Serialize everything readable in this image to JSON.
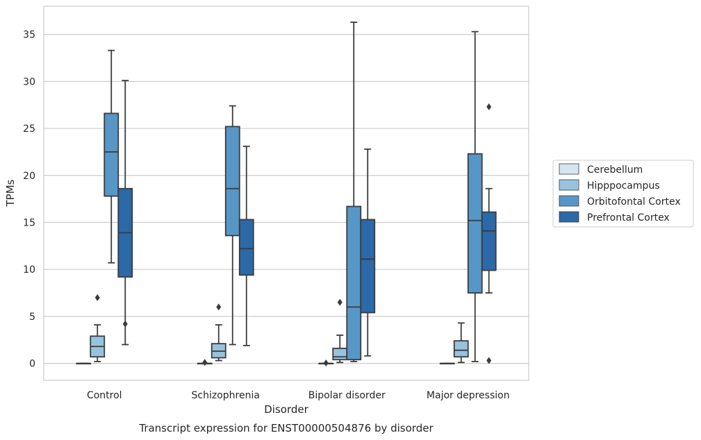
{
  "chart_data": {
    "type": "box",
    "xlabel": "Disorder",
    "ylabel": "TPMs",
    "caption": "Transcript expression for ENST00000504876 by disorder",
    "ylim": [
      -1.8,
      38.0
    ],
    "yticks": [
      0,
      5,
      10,
      15,
      20,
      25,
      30,
      35
    ],
    "grid": "horizontal",
    "legend_position": "right",
    "categories": [
      "Control",
      "Schizophrenia",
      "Bipolar disorder",
      "Major depression"
    ],
    "series": [
      {
        "name": "Cerebellum",
        "color": "#d6e5f2",
        "boxes": [
          {
            "whisker_low": 0,
            "q1": 0,
            "median": 0,
            "q3": 0,
            "whisker_high": 0,
            "outliers": []
          },
          {
            "whisker_low": 0,
            "q1": 0,
            "median": 0,
            "q3": 0,
            "whisker_high": 0,
            "outliers": [
              0.1
            ]
          },
          {
            "whisker_low": 0,
            "q1": 0,
            "median": 0,
            "q3": 0,
            "whisker_high": 0,
            "outliers": [
              0.05
            ]
          },
          {
            "whisker_low": 0,
            "q1": 0,
            "median": 0,
            "q3": 0,
            "whisker_high": 0,
            "outliers": []
          }
        ]
      },
      {
        "name": "Hipppocampus",
        "color": "#97c3df",
        "boxes": [
          {
            "whisker_low": 0.2,
            "q1": 0.7,
            "median": 1.8,
            "q3": 2.9,
            "whisker_high": 4.1,
            "outliers": [
              7.0
            ]
          },
          {
            "whisker_low": 0.3,
            "q1": 0.6,
            "median": 1.3,
            "q3": 2.1,
            "whisker_high": 4.1,
            "outliers": [
              6.0
            ]
          },
          {
            "whisker_low": 0.1,
            "q1": 0.4,
            "median": 0.7,
            "q3": 1.6,
            "whisker_high": 3.0,
            "outliers": [
              6.5
            ]
          },
          {
            "whisker_low": 0.1,
            "q1": 0.7,
            "median": 1.4,
            "q3": 2.4,
            "whisker_high": 4.3,
            "outliers": []
          }
        ]
      },
      {
        "name": "Orbitofontal Cortex",
        "color": "#5697c7",
        "boxes": [
          {
            "whisker_low": 10.7,
            "q1": 17.8,
            "median": 22.5,
            "q3": 26.6,
            "whisker_high": 33.3,
            "outliers": []
          },
          {
            "whisker_low": 2.0,
            "q1": 13.6,
            "median": 18.6,
            "q3": 25.2,
            "whisker_high": 27.4,
            "outliers": []
          },
          {
            "whisker_low": 0.2,
            "q1": 0.4,
            "median": 6.0,
            "q3": 16.7,
            "whisker_high": 36.3,
            "outliers": []
          },
          {
            "whisker_low": 0.2,
            "q1": 7.5,
            "median": 15.2,
            "q3": 22.3,
            "whisker_high": 35.3,
            "outliers": []
          }
        ]
      },
      {
        "name": "Prefrontal Cortex",
        "color": "#2c69a8",
        "boxes": [
          {
            "whisker_low": 2.0,
            "q1": 9.2,
            "median": 13.9,
            "q3": 18.6,
            "whisker_high": 30.1,
            "outliers": [
              4.2
            ]
          },
          {
            "whisker_low": 1.9,
            "q1": 9.4,
            "median": 12.2,
            "q3": 15.3,
            "whisker_high": 23.1,
            "outliers": []
          },
          {
            "whisker_low": 0.8,
            "q1": 5.4,
            "median": 11.1,
            "q3": 15.3,
            "whisker_high": 22.8,
            "outliers": []
          },
          {
            "whisker_low": 7.5,
            "q1": 9.9,
            "median": 14.1,
            "q3": 16.1,
            "whisker_high": 18.6,
            "outliers": [
              27.3,
              0.3
            ]
          }
        ]
      }
    ]
  }
}
